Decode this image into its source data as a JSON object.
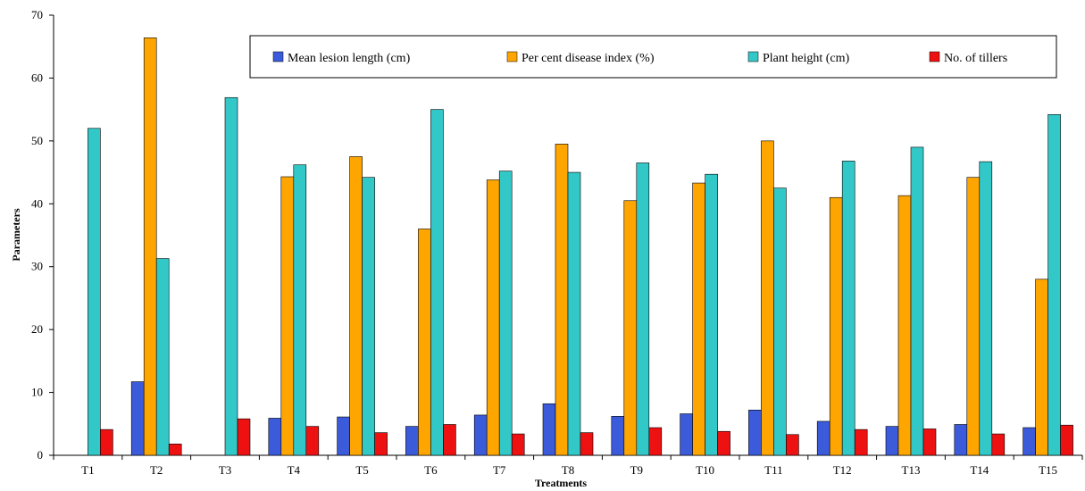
{
  "chart_data": {
    "type": "bar",
    "xlabel": "Treatments",
    "ylabel": "Parameters",
    "ylim": [
      0,
      70
    ],
    "yticks": [
      0,
      10,
      20,
      30,
      40,
      50,
      60,
      70
    ],
    "grid": false,
    "legend_position": "top-right",
    "categories": [
      "T1",
      "T2",
      "T3",
      "T4",
      "T5",
      "T6",
      "T7",
      "T8",
      "T9",
      "T10",
      "T11",
      "T12",
      "T13",
      "T14",
      "T15"
    ],
    "series": [
      {
        "name": "Mean lesion length (cm)",
        "color": "#3b5bdb",
        "values": [
          0,
          11.7,
          0,
          5.9,
          6.1,
          4.6,
          6.4,
          8.2,
          6.2,
          6.6,
          7.2,
          5.4,
          4.6,
          4.9,
          4.4
        ]
      },
      {
        "name": "Per cent disease index (%)",
        "color": "#ffa500",
        "values": [
          0,
          66.4,
          0,
          44.3,
          47.5,
          36.0,
          43.8,
          49.5,
          40.5,
          43.3,
          50.0,
          41.0,
          41.3,
          44.2,
          28.0
        ]
      },
      {
        "name": "Plant height (cm)",
        "color": "#33c8c8",
        "values": [
          52.0,
          31.3,
          56.9,
          46.2,
          44.2,
          55.0,
          45.2,
          45.0,
          46.5,
          44.7,
          42.5,
          46.8,
          49.0,
          46.7,
          54.2
        ]
      },
      {
        "name": "No. of tillers",
        "color": "#ee1111",
        "values": [
          4.1,
          1.8,
          5.8,
          4.6,
          3.6,
          4.9,
          3.4,
          3.6,
          4.4,
          3.8,
          3.3,
          4.1,
          4.2,
          3.4,
          4.8
        ]
      }
    ]
  }
}
